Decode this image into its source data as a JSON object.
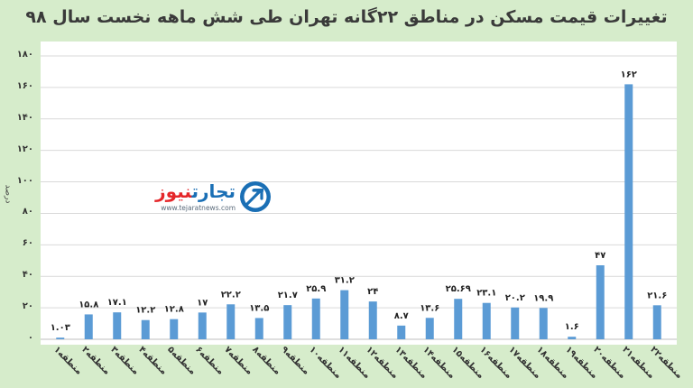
{
  "chart_data": {
    "type": "bar",
    "title": "تغییرات قیمت مسکن در مناطق ۲۲گانه تهران طی شش ماهه نخست سال ۹۸",
    "ylabel": "درصد",
    "xlabel": "",
    "ylim": [
      0,
      180
    ],
    "yticks": [
      0,
      20,
      40,
      60,
      80,
      100,
      120,
      140,
      160,
      180
    ],
    "ytick_labels": [
      "۰",
      "۲۰",
      "۴۰",
      "۶۰",
      "۸۰",
      "۱۰۰",
      "۱۲۰",
      "۱۴۰",
      "۱۶۰",
      "۱۸۰"
    ],
    "grid": true,
    "bar_color": "#5b9bd5",
    "categories": [
      "منطقه۱",
      "منطقه۲",
      "منطقه۳",
      "منطقه۴",
      "منطقه۵",
      "منطقه۶",
      "منطقه۷",
      "منطقه۸",
      "منطقه۹",
      "منطقه۱۰",
      "منطقه۱۱",
      "منطقه۱۲",
      "منطقه۱۳",
      "منطقه۱۴",
      "منطقه۱۵",
      "منطقه۱۶",
      "منطقه۱۷",
      "منطقه۱۸",
      "منطقه۱۹",
      "منطقه۲۰",
      "منطقه۲۱",
      "منطقه۲۲"
    ],
    "values": [
      1.03,
      15.8,
      17.1,
      12.2,
      12.8,
      17,
      22.2,
      13.5,
      21.7,
      25.9,
      31.2,
      24,
      8.7,
      13.6,
      25.69,
      23.1,
      20.2,
      19.9,
      1.6,
      47,
      162,
      21.6
    ],
    "value_labels": [
      "۱.۰۳",
      "۱۵.۸",
      "۱۷.۱",
      "۱۲.۲",
      "۱۲.۸",
      "۱۷",
      "۲۲.۲",
      "۱۳.۵",
      "۲۱.۷",
      "۲۵.۹",
      "۳۱.۲",
      "۲۴",
      "۸.۷",
      "۱۳.۶",
      "۲۵.۶۹",
      "۲۳.۱",
      "۲۰.۲",
      "۱۹.۹",
      "۱.۶",
      "۴۷",
      "۱۶۲",
      "۲۱.۶"
    ]
  },
  "watermark": {
    "word_1": "تجارت",
    "word_2": "نیوز",
    "url": "www.tejaratnews.com",
    "icon": "tejarat-news-logo-icon"
  }
}
